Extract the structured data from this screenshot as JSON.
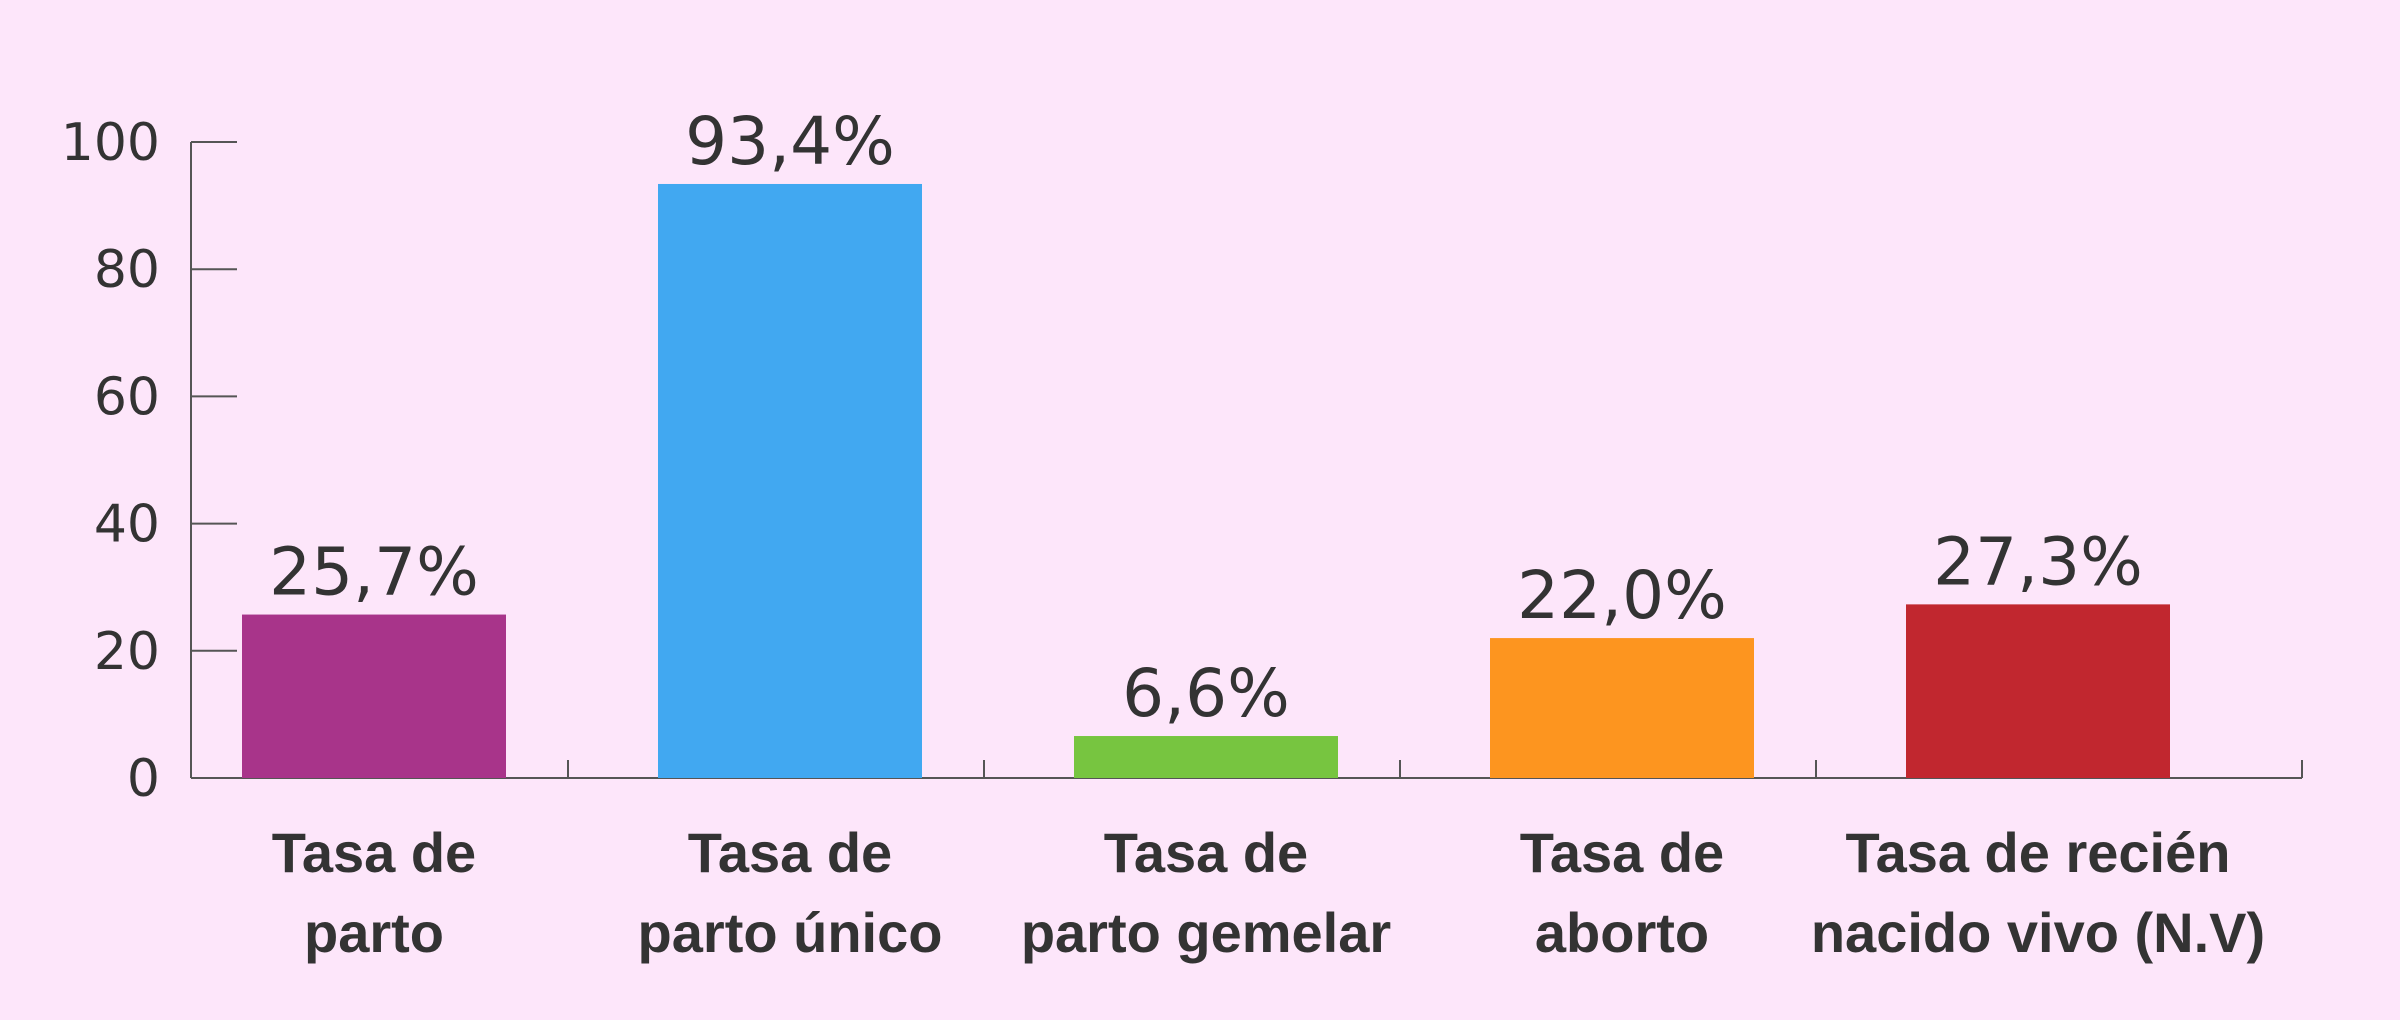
{
  "chart_data": {
    "type": "bar",
    "categories": [
      [
        "Tasa de",
        "parto"
      ],
      [
        "Tasa de",
        "parto único"
      ],
      [
        "Tasa de",
        "parto gemelar"
      ],
      [
        "Tasa de",
        "aborto"
      ],
      [
        "Tasa de recién",
        "nacido vivo (N.V)"
      ]
    ],
    "values": [
      25.7,
      93.4,
      6.6,
      22.0,
      27.3
    ],
    "data_labels": [
      "25,7%",
      "93,4%",
      "6,6%",
      "22,0%",
      "27,3%"
    ],
    "colors": [
      "#a8348a",
      "#41a8f1",
      "#77c540",
      "#fd951f",
      "#c1272f"
    ],
    "yticks": [
      0,
      20,
      40,
      60,
      80,
      100
    ],
    "ylim": [
      0,
      100
    ],
    "title": "",
    "xlabel": "",
    "ylabel": "",
    "grid": false,
    "legend": "none"
  }
}
